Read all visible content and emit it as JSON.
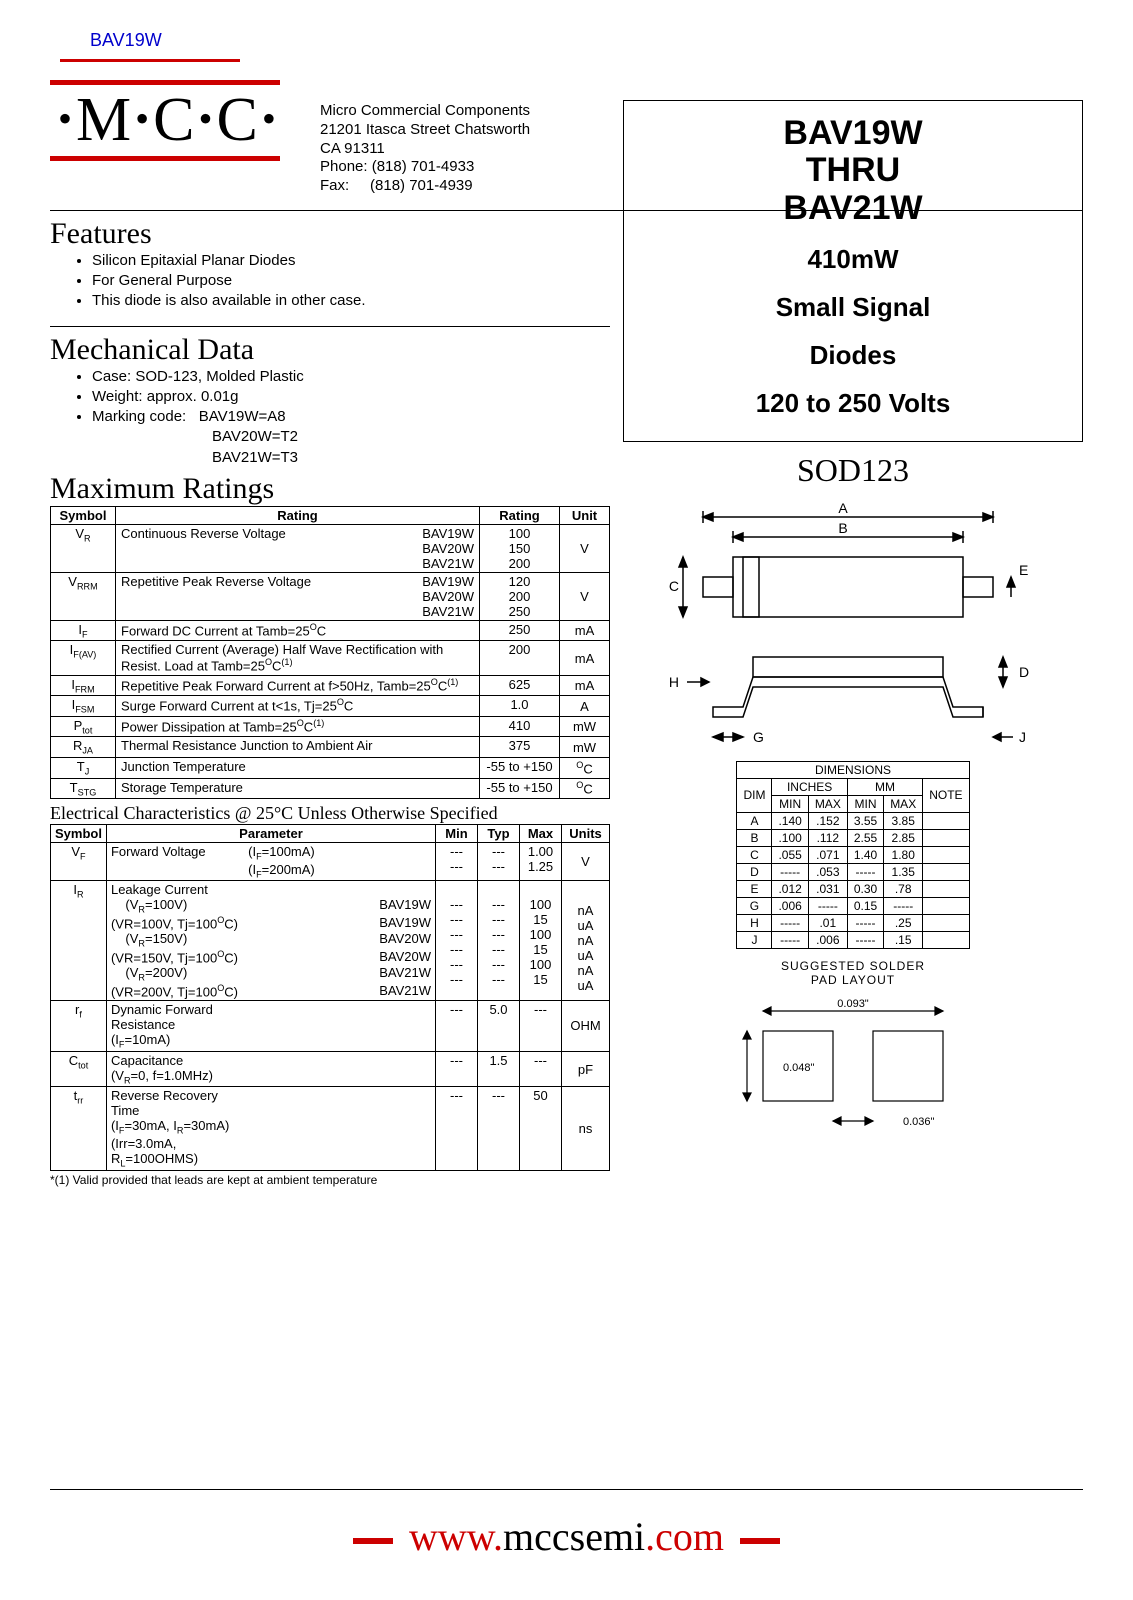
{
  "top_link": "BAV19W",
  "logo": "M C C",
  "address": {
    "name": "Micro Commercial Components",
    "street": "21201 Itasca Street Chatsworth",
    "city": "CA 91311",
    "phone_label": "Phone:",
    "phone": "(818) 701-4933",
    "fax_label": "Fax:",
    "fax": "(818) 701-4939"
  },
  "sections": {
    "features": "Features",
    "mechanical": "Mechanical Data",
    "max_ratings": "Maximum Ratings",
    "elec_char": "Electrical Characteristics @ 25°C Unless Otherwise Specified"
  },
  "features": [
    "Silicon Epitaxial Planar Diodes",
    "For General Purpose",
    "This diode is also available in other case."
  ],
  "mechanical": {
    "case": "Case: SOD-123, Molded Plastic",
    "weight": "Weight: approx. 0.01g",
    "marking_label": "Marking code:",
    "marking": [
      "BAV19W=A8",
      "BAV20W=T2",
      "BAV21W=T3"
    ]
  },
  "max_ratings_hdr": {
    "c1": "Symbol",
    "c2": "Rating",
    "c3": "Rating",
    "c4": "Unit"
  },
  "max_ratings": [
    {
      "sym": "V<sub>R</sub>",
      "desc": "Continuous Reverse Voltage",
      "parts": [
        "BAV19W",
        "BAV20W",
        "BAV21W"
      ],
      "vals": [
        "100",
        "150",
        "200"
      ],
      "unit": "V"
    },
    {
      "sym": "V<sub>RRM</sub>",
      "desc": "Repetitive Peak Reverse Voltage",
      "parts": [
        "BAV19W",
        "BAV20W",
        "BAV21W"
      ],
      "vals": [
        "120",
        "200",
        "250"
      ],
      "unit": "V"
    },
    {
      "sym": "I<sub>F</sub>",
      "desc": "Forward DC Current at Tamb=25<sup>O</sup>C",
      "parts": [],
      "vals": [
        "250"
      ],
      "unit": "mA"
    },
    {
      "sym": "I<sub>F(AV)</sub>",
      "desc": "Rectified Current (Average) Half Wave Rectification with Resist. Load at Tamb=25<sup>O</sup>C<sup>(1)</sup>",
      "parts": [],
      "vals": [
        "200"
      ],
      "unit": "mA"
    },
    {
      "sym": "I<sub>FRM</sub>",
      "desc": "Repetitive Peak Forward Current at f>50Hz, Tamb=25<sup>O</sup>C<sup>(1)</sup>",
      "parts": [],
      "vals": [
        "625"
      ],
      "unit": "mA"
    },
    {
      "sym": "I<sub>FSM</sub>",
      "desc": "Surge Forward Current at t<1s, Tj=25<sup>O</sup>C",
      "parts": [],
      "vals": [
        "1.0"
      ],
      "unit": "A"
    },
    {
      "sym": "P<sub>tot</sub>",
      "desc": "Power Dissipation at Tamb=25<sup>O</sup>C<sup>(1)</sup>",
      "parts": [],
      "vals": [
        "410"
      ],
      "unit": "mW"
    },
    {
      "sym": "R<sub>JA</sub>",
      "desc": "Thermal Resistance Junction to Ambient Air",
      "parts": [],
      "vals": [
        "375"
      ],
      "unit": "mW"
    },
    {
      "sym": "T<sub>J</sub>",
      "desc": "Junction Temperature",
      "parts": [],
      "vals": [
        "-55 to +150"
      ],
      "unit": "<sup>O</sup>C"
    },
    {
      "sym": "T<sub>STG</sub>",
      "desc": "Storage Temperature",
      "parts": [],
      "vals": [
        "-55 to +150"
      ],
      "unit": "<sup>O</sup>C"
    }
  ],
  "elec_hdr": {
    "c1": "Symbol",
    "c2": "Parameter",
    "c3": "Min",
    "c4": "Typ",
    "c5": "Max",
    "c6": "Units"
  },
  "elec": [
    {
      "sym": "V<sub>F</sub>",
      "lines": [
        {
          "p1": "Forward Voltage",
          "p2": "(I<sub>F</sub>=100mA)",
          "p3": "",
          "min": "---",
          "typ": "---",
          "max": "1.00"
        },
        {
          "p1": "",
          "p2": "(I<sub>F</sub>=200mA)",
          "p3": "",
          "min": "---",
          "typ": "---",
          "max": "1.25"
        }
      ],
      "unit": "V"
    },
    {
      "sym": "I<sub>R</sub>",
      "lines": [
        {
          "p1": "Leakage Current",
          "p2": "",
          "p3": "",
          "min": "",
          "typ": "",
          "max": ""
        },
        {
          "p1": "&nbsp;&nbsp;&nbsp;&nbsp;(V<sub>R</sub>=100V)",
          "p2": "",
          "p3": "BAV19W",
          "min": "---",
          "typ": "---",
          "max": "100",
          "u": "nA"
        },
        {
          "p1": "(VR=100V, Tj=100<sup>O</sup>C)",
          "p2": "",
          "p3": "BAV19W",
          "min": "---",
          "typ": "---",
          "max": "15",
          "u": "uA"
        },
        {
          "p1": "&nbsp;&nbsp;&nbsp;&nbsp;(V<sub>R</sub>=150V)",
          "p2": "",
          "p3": "BAV20W",
          "min": "---",
          "typ": "---",
          "max": "100",
          "u": "nA"
        },
        {
          "p1": "(VR=150V, Tj=100<sup>O</sup>C)",
          "p2": "",
          "p3": "BAV20W",
          "min": "---",
          "typ": "---",
          "max": "15",
          "u": "uA"
        },
        {
          "p1": "&nbsp;&nbsp;&nbsp;&nbsp;(V<sub>R</sub>=200V)",
          "p2": "",
          "p3": "BAV21W",
          "min": "---",
          "typ": "---",
          "max": "100",
          "u": "nA"
        },
        {
          "p1": "(VR=200V, Tj=100<sup>O</sup>C)",
          "p2": "",
          "p3": "BAV21W",
          "min": "---",
          "typ": "---",
          "max": "15",
          "u": "uA"
        }
      ],
      "unit": ""
    },
    {
      "sym": "r<sub>f</sub>",
      "lines": [
        {
          "p1": "Dynamic Forward Resistance",
          "p2": "",
          "p3": "",
          "min": "---",
          "typ": "5.0",
          "max": "---"
        },
        {
          "p1": "(I<sub>F</sub>=10mA)",
          "p2": "",
          "p3": "",
          "min": "",
          "typ": "",
          "max": ""
        }
      ],
      "unit": "OHM"
    },
    {
      "sym": "C<sub>tot</sub>",
      "lines": [
        {
          "p1": "Capacitance",
          "p2": "",
          "p3": "",
          "min": "---",
          "typ": "1.5",
          "max": "---"
        },
        {
          "p1": "(V<sub>R</sub>=0, f=1.0MHz)",
          "p2": "",
          "p3": "",
          "min": "",
          "typ": "",
          "max": ""
        }
      ],
      "unit": "pF"
    },
    {
      "sym": "t<sub>rr</sub>",
      "lines": [
        {
          "p1": "Reverse Recovery Time",
          "p2": "",
          "p3": "",
          "min": "---",
          "typ": "---",
          "max": "50"
        },
        {
          "p1": "(I<sub>F</sub>=30mA, I<sub>R</sub>=30mA)",
          "p2": "",
          "p3": "",
          "min": "",
          "typ": "",
          "max": ""
        },
        {
          "p1": "(Irr=3.0mA, R<sub>L</sub>=100OHMS)",
          "p2": "",
          "p3": "",
          "min": "",
          "typ": "",
          "max": ""
        }
      ],
      "unit": "ns"
    }
  ],
  "footnote": "*(1) Valid provided that leads are kept at ambient temperature",
  "title_box": {
    "l1": "BAV19W",
    "l2": "THRU",
    "l3": "BAV21W",
    "m1": "410mW",
    "m2": "Small Signal",
    "m3": "Diodes",
    "m4": "120 to 250 Volts"
  },
  "sod_label": "SOD123",
  "dim_hdr": {
    "title": "DIMENSIONS",
    "dim": "DIM",
    "in": "INCHES",
    "mm": "MM",
    "note": "NOTE",
    "min": "MIN",
    "max": "MAX"
  },
  "dims": [
    [
      "A",
      ".140",
      ".152",
      "3.55",
      "3.85",
      ""
    ],
    [
      "B",
      ".100",
      ".112",
      "2.55",
      "2.85",
      ""
    ],
    [
      "C",
      ".055",
      ".071",
      "1.40",
      "1.80",
      ""
    ],
    [
      "D",
      "-----",
      ".053",
      "-----",
      "1.35",
      ""
    ],
    [
      "E",
      ".012",
      ".031",
      "0.30",
      ".78",
      ""
    ],
    [
      "G",
      ".006",
      "-----",
      "0.15",
      "-----",
      ""
    ],
    [
      "H",
      "-----",
      ".01",
      "-----",
      ".25",
      ""
    ],
    [
      "J",
      "-----",
      ".006",
      "-----",
      ".15",
      ""
    ]
  ],
  "solder": {
    "title1": "SUGGESTED SOLDER",
    "title2": "PAD LAYOUT",
    "w": "0.093\"",
    "h": "0.048\"",
    "g": "0.036\""
  },
  "footer": {
    "w": "www.",
    "d": "mccsemi",
    "c": ".com"
  },
  "colors": {
    "accent": "#cc0000",
    "text": "#000000",
    "link": "#0000cc"
  }
}
